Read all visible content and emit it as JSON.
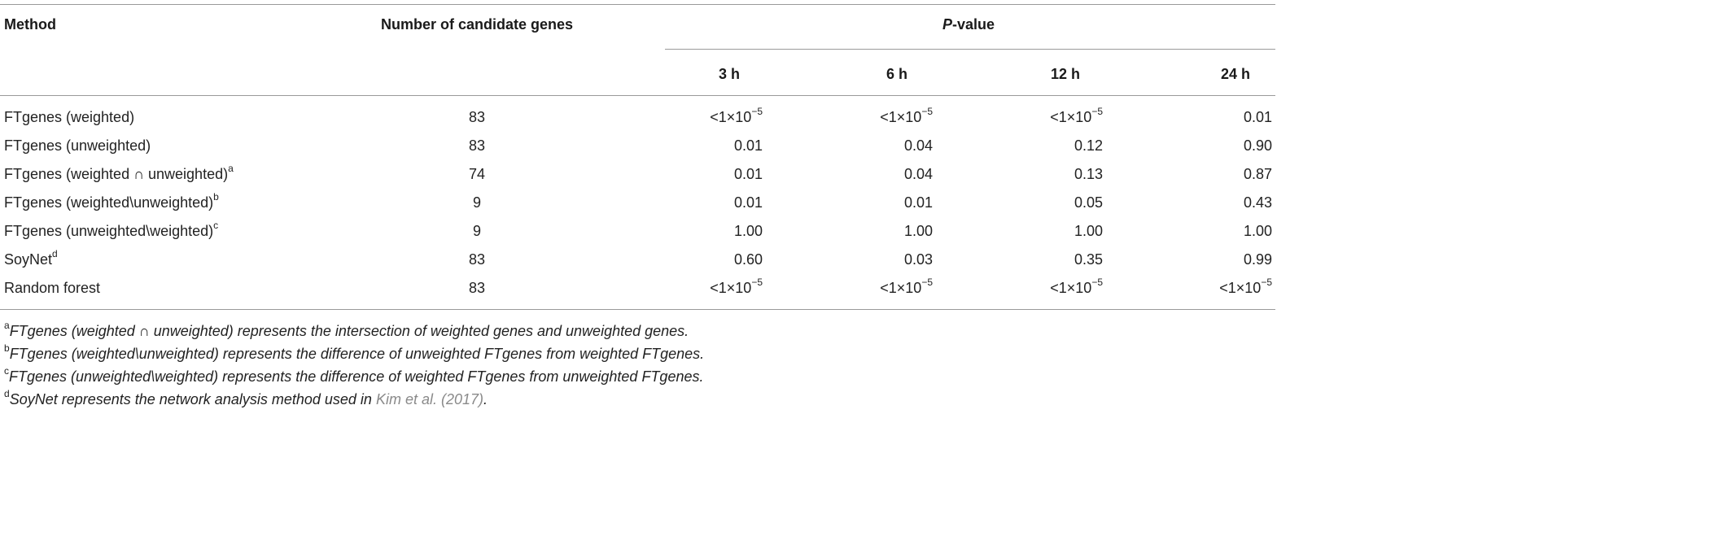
{
  "table": {
    "columns": {
      "method": "Method",
      "num_genes": "Number of candidate genes",
      "pvalue_prefix": "P",
      "pvalue_suffix": "-value",
      "timepoints": [
        "3 h",
        "6 h",
        "12 h",
        "24 h"
      ]
    },
    "rows": [
      {
        "method": "FTgenes (weighted)",
        "sup": "",
        "n": "83",
        "pvalues": [
          {
            "v": "<1×10",
            "e": "−5"
          },
          {
            "v": "<1×10",
            "e": "−5"
          },
          {
            "v": "<1×10",
            "e": "−5"
          },
          {
            "v": "0.01",
            "e": ""
          }
        ]
      },
      {
        "method": "FTgenes (unweighted)",
        "sup": "",
        "n": "83",
        "pvalues": [
          {
            "v": "0.01",
            "e": ""
          },
          {
            "v": "0.04",
            "e": ""
          },
          {
            "v": "0.12",
            "e": ""
          },
          {
            "v": "0.90",
            "e": ""
          }
        ]
      },
      {
        "method": "FTgenes (weighted ∩ unweighted)",
        "sup": "a",
        "n": "74",
        "pvalues": [
          {
            "v": "0.01",
            "e": ""
          },
          {
            "v": "0.04",
            "e": ""
          },
          {
            "v": "0.13",
            "e": ""
          },
          {
            "v": "0.87",
            "e": ""
          }
        ]
      },
      {
        "method": "FTgenes (weighted\\unweighted)",
        "sup": "b",
        "n": "9",
        "pvalues": [
          {
            "v": "0.01",
            "e": ""
          },
          {
            "v": "0.01",
            "e": ""
          },
          {
            "v": "0.05",
            "e": ""
          },
          {
            "v": "0.43",
            "e": ""
          }
        ]
      },
      {
        "method": "FTgenes (unweighted\\weighted)",
        "sup": "c",
        "n": "9",
        "pvalues": [
          {
            "v": "1.00",
            "e": ""
          },
          {
            "v": "1.00",
            "e": ""
          },
          {
            "v": "1.00",
            "e": ""
          },
          {
            "v": "1.00",
            "e": ""
          }
        ]
      },
      {
        "method": "SoyNet",
        "sup": "d",
        "n": "83",
        "pvalues": [
          {
            "v": "0.60",
            "e": ""
          },
          {
            "v": "0.03",
            "e": ""
          },
          {
            "v": "0.35",
            "e": ""
          },
          {
            "v": "0.99",
            "e": ""
          }
        ]
      },
      {
        "method": "Random forest",
        "sup": "",
        "n": "83",
        "pvalues": [
          {
            "v": "<1×10",
            "e": "−5"
          },
          {
            "v": "<1×10",
            "e": "−5"
          },
          {
            "v": "<1×10",
            "e": "−5"
          },
          {
            "v": "<1×10",
            "e": "−5"
          }
        ]
      }
    ]
  },
  "footnotes": [
    {
      "mark": "a",
      "text": "FTgenes (weighted ∩ unweighted) represents the intersection of weighted genes and unweighted genes.",
      "cite": "",
      "tail": ""
    },
    {
      "mark": "b",
      "text": "FTgenes (weighted\\unweighted) represents the difference of unweighted FTgenes from weighted FTgenes.",
      "cite": "",
      "tail": ""
    },
    {
      "mark": "c",
      "text": "FTgenes (unweighted\\weighted) represents the difference of weighted FTgenes from unweighted FTgenes.",
      "cite": "",
      "tail": ""
    },
    {
      "mark": "d",
      "text": "SoyNet represents the network analysis method used in ",
      "cite": "Kim et al. (2017)",
      "tail": "."
    }
  ]
}
